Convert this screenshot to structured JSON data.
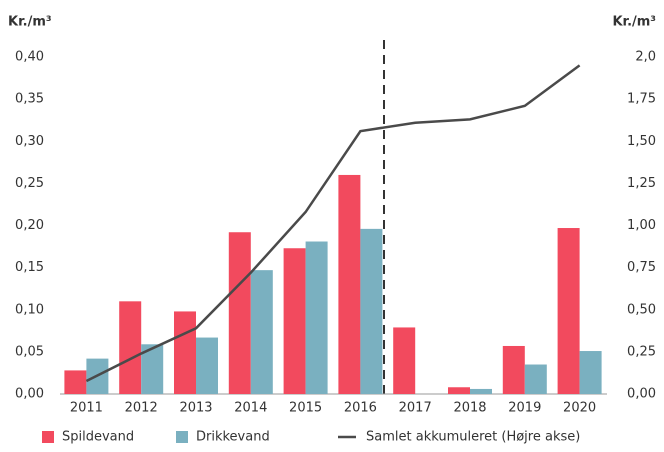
{
  "chart_data": {
    "type": "bar",
    "y_label": "Kr./m³",
    "y2_label": "Kr./m³",
    "categories": [
      "2011",
      "2012",
      "2013",
      "2014",
      "2015",
      "2016",
      "2017",
      "2018",
      "2019",
      "2020"
    ],
    "series": [
      {
        "name": "Spildevand",
        "color": "#f24a5e",
        "values": [
          0.028,
          0.11,
          0.098,
          0.192,
          0.173,
          0.26,
          0.079,
          0.008,
          0.057,
          0.197
        ]
      },
      {
        "name": "Drikkevand",
        "color": "#7ab0c0",
        "values": [
          0.042,
          0.059,
          0.067,
          0.147,
          0.181,
          0.196,
          0,
          0.006,
          0.035,
          0.051
        ]
      },
      {
        "name": "Samlet akkumuleret (Højre akse)",
        "color": "#4a4a4a",
        "type": "line",
        "axis": "y2",
        "values": [
          0.077,
          0.24,
          0.39,
          0.72,
          1.08,
          1.56,
          1.61,
          1.63,
          1.71,
          1.95
        ]
      }
    ],
    "ylim": [
      0,
      0.4
    ],
    "yticks": [
      {
        "value": 0,
        "label": "0,00"
      },
      {
        "value": 0.05,
        "label": "0,05"
      },
      {
        "value": 0.1,
        "label": "0,10"
      },
      {
        "value": 0.15,
        "label": "0,15"
      },
      {
        "value": 0.2,
        "label": "0,20"
      },
      {
        "value": 0.25,
        "label": "0,25"
      },
      {
        "value": 0.3,
        "label": "0,30"
      },
      {
        "value": 0.35,
        "label": "0,35"
      },
      {
        "value": 0.4,
        "label": "0,40"
      }
    ],
    "y2lim": [
      0,
      2
    ],
    "y2ticks": [
      {
        "value": 0,
        "label": "0,00"
      },
      {
        "value": 0.25,
        "label": "0,25"
      },
      {
        "value": 0.5,
        "label": "0,50"
      },
      {
        "value": 0.75,
        "label": "0,75"
      },
      {
        "value": 1,
        "label": "1,00"
      },
      {
        "value": 1.25,
        "label": "1,25"
      },
      {
        "value": 1.5,
        "label": "1,50"
      },
      {
        "value": 1.75,
        "label": "1,75"
      },
      {
        "value": 2,
        "label": "2,0"
      }
    ]
  }
}
